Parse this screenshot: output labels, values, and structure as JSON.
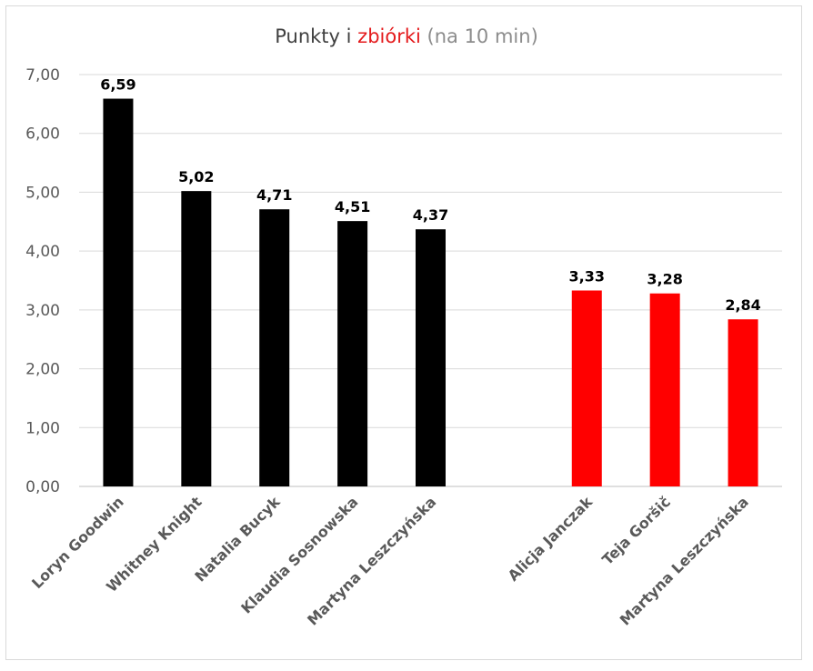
{
  "chart_data": {
    "type": "bar",
    "title_parts": {
      "part1": "Punkty",
      "part2": " i ",
      "part3": "zbiórki",
      "part4": " (na 10 min)"
    },
    "colors": {
      "black": "#000000",
      "red": "#ff0000",
      "title_red": "#e41a1c"
    },
    "ylim": [
      0,
      7
    ],
    "yticks": [
      "0,00",
      "1,00",
      "2,00",
      "3,00",
      "4,00",
      "5,00",
      "6,00",
      "7,00"
    ],
    "grid": true,
    "bars": [
      {
        "category": "Loryn Goodwin",
        "value": 6.59,
        "label": "6,59",
        "color": "#000000"
      },
      {
        "category": "Whitney Knight",
        "value": 5.02,
        "label": "5,02",
        "color": "#000000"
      },
      {
        "category": "Natalia Bucyk",
        "value": 4.71,
        "label": "4,71",
        "color": "#000000"
      },
      {
        "category": "Klaudia Sosnowska",
        "value": 4.51,
        "label": "4,51",
        "color": "#000000"
      },
      {
        "category": "Martyna Leszczyńska",
        "value": 4.37,
        "label": "4,37",
        "color": "#000000"
      },
      {
        "category": "",
        "value": null,
        "label": "",
        "color": ""
      },
      {
        "category": "Alicja Janczak",
        "value": 3.33,
        "label": "3,33",
        "color": "#ff0000"
      },
      {
        "category": "Teja Goršič",
        "value": 3.28,
        "label": "3,28",
        "color": "#ff0000"
      },
      {
        "category": "Martyna Leszczyńska",
        "value": 2.84,
        "label": "2,84",
        "color": "#ff0000"
      }
    ]
  }
}
